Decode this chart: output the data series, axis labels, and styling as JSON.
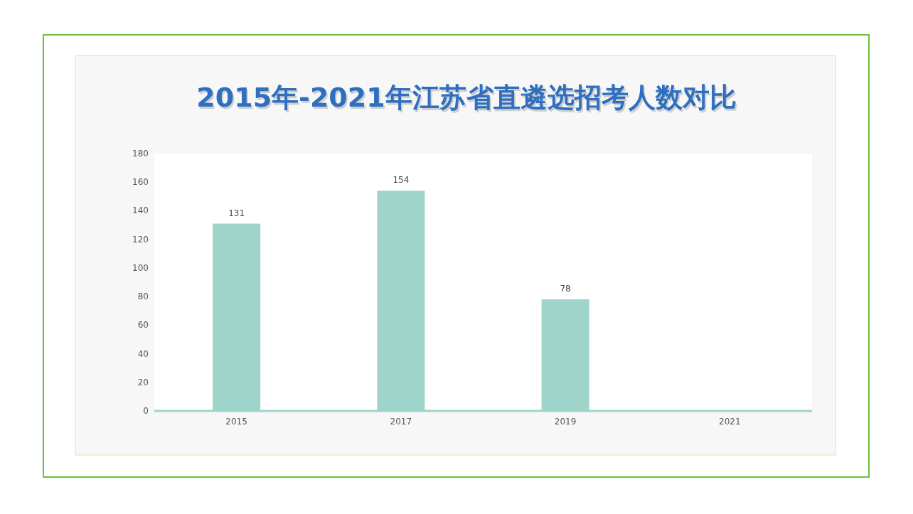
{
  "chart_data": {
    "type": "bar",
    "title": "2015年-2021年江苏省直遴选招考人数对比",
    "categories": [
      "2015",
      "2017",
      "2019",
      "2021"
    ],
    "values": [
      131,
      154,
      78,
      null
    ],
    "color": "#9ed4c9",
    "ylim": [
      0,
      180
    ],
    "yticks": [
      0,
      20,
      40,
      60,
      80,
      100,
      120,
      140,
      160,
      180
    ],
    "data_labels": true
  }
}
